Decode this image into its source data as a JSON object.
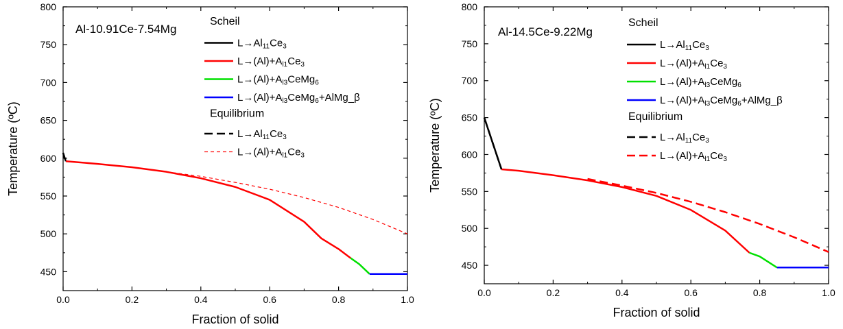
{
  "chart_data": [
    {
      "type": "line",
      "alloy": "Al-10.91Ce-7.54Mg",
      "xlabel": "Fraction of solid",
      "ylabel": "Temperature (ºC)",
      "xlim": [
        0,
        1.0
      ],
      "ylim": [
        425,
        800
      ],
      "xticks": [
        "0.0",
        "0.2",
        "0.4",
        "0.6",
        "0.8",
        "1.0"
      ],
      "yticks": [
        "450",
        "500",
        "550",
        "600",
        "650",
        "700",
        "750",
        "800"
      ],
      "scheil_heading": "Scheil",
      "equilibrium_heading": "Equilibrium",
      "series": [
        {
          "name": "L→Al11Ce3",
          "legend_parts": [
            [
              "L→Al",
              ""
            ],
            [
              "11",
              "sub"
            ],
            [
              "Ce",
              ""
            ],
            [
              "3",
              "sub"
            ]
          ],
          "group": "scheil",
          "color": "#000000",
          "dash": "solid",
          "width": 2.5,
          "x": [
            0.0,
            0.005,
            0.008
          ],
          "y": [
            607,
            600,
            596
          ]
        },
        {
          "name": "L→(Al)+Al1Ce3",
          "legend_parts": [
            [
              "L→(Al)+A",
              ""
            ],
            [
              "l1",
              "sub"
            ],
            [
              "Ce",
              ""
            ],
            [
              "3",
              "sub"
            ]
          ],
          "group": "scheil",
          "color": "#ff0000",
          "dash": "solid",
          "width": 2.5,
          "x": [
            0.008,
            0.1,
            0.2,
            0.3,
            0.4,
            0.5,
            0.6,
            0.7,
            0.75,
            0.8,
            0.835
          ],
          "y": [
            596,
            592.5,
            588,
            582,
            573.5,
            562,
            545,
            516,
            494,
            480,
            468
          ]
        },
        {
          "name": "L→(Al)+Al3CeMg6",
          "legend_parts": [
            [
              "L→(Al)+A",
              ""
            ],
            [
              "l3",
              "sub"
            ],
            [
              "CeMg",
              ""
            ],
            [
              "6",
              "sub"
            ]
          ],
          "group": "scheil",
          "color": "#00e000",
          "dash": "solid",
          "width": 2.5,
          "x": [
            0.835,
            0.86,
            0.89
          ],
          "y": [
            468,
            460,
            447
          ]
        },
        {
          "name": "L→(Al)+Al3CeMg6+AlMg_β",
          "legend_parts": [
            [
              "L→(Al)+A",
              ""
            ],
            [
              "l3",
              "sub"
            ],
            [
              "CeMg",
              ""
            ],
            [
              "6",
              "sub"
            ],
            [
              "+AlMg_β",
              ""
            ]
          ],
          "group": "scheil",
          "color": "#0000ff",
          "dash": "solid",
          "width": 2.5,
          "x": [
            0.89,
            1.0
          ],
          "y": [
            447,
            447
          ]
        },
        {
          "name": "L→Al11Ce3 (Equilibrium)",
          "legend_parts": [
            [
              "L→Al",
              ""
            ],
            [
              "11",
              "sub"
            ],
            [
              "Ce",
              ""
            ],
            [
              "3",
              "sub"
            ]
          ],
          "group": "equilibrium",
          "color": "#000000",
          "dash": "dashed",
          "width": 2.5,
          "x": [
            0.0,
            0.005
          ],
          "y": [
            607,
            599
          ]
        },
        {
          "name": "L→(Al)+Al1Ce3 (Equilibrium)",
          "legend_parts": [
            [
              "L→(Al)+A",
              ""
            ],
            [
              "l1",
              "sub"
            ],
            [
              "Ce",
              ""
            ],
            [
              "3",
              "sub"
            ]
          ],
          "group": "equilibrium",
          "color": "#ff0000",
          "dash": "thin-dashed",
          "width": 1.2,
          "x": [
            0.3,
            0.4,
            0.5,
            0.6,
            0.7,
            0.8,
            0.9,
            1.0
          ],
          "y": [
            582,
            576,
            568,
            559,
            548,
            535,
            519,
            500
          ]
        }
      ]
    },
    {
      "type": "line",
      "alloy": "Al-14.5Ce-9.22Mg",
      "xlabel": "Fraction of solid",
      "ylabel": "Temperature (ºC)",
      "xlim": [
        0,
        1.0
      ],
      "ylim": [
        425,
        800
      ],
      "xticks": [
        "0.0",
        "0.2",
        "0.4",
        "0.6",
        "0.8",
        "1.0"
      ],
      "yticks": [
        "450",
        "500",
        "550",
        "600",
        "650",
        "700",
        "750",
        "800"
      ],
      "scheil_heading": "Scheil",
      "equilibrium_heading": "Equilibrium",
      "series": [
        {
          "name": "L→Al11Ce3",
          "legend_parts": [
            [
              "L→Al",
              ""
            ],
            [
              "11",
              "sub"
            ],
            [
              "Ce",
              ""
            ],
            [
              "3",
              "sub"
            ]
          ],
          "group": "scheil",
          "color": "#000000",
          "dash": "solid",
          "width": 2.5,
          "x": [
            0.0,
            0.05
          ],
          "y": [
            650,
            580
          ]
        },
        {
          "name": "L→(Al)+Al1Ce3",
          "legend_parts": [
            [
              "L→(Al)+A",
              ""
            ],
            [
              "l1",
              "sub"
            ],
            [
              "Ce",
              ""
            ],
            [
              "3",
              "sub"
            ]
          ],
          "group": "scheil",
          "color": "#ff0000",
          "dash": "solid",
          "width": 2.5,
          "x": [
            0.05,
            0.1,
            0.2,
            0.3,
            0.4,
            0.5,
            0.6,
            0.7,
            0.77
          ],
          "y": [
            580,
            578,
            572,
            565,
            556,
            544,
            525,
            497,
            467
          ]
        },
        {
          "name": "L→(Al)+Al3CeMg6",
          "legend_parts": [
            [
              "L→(Al)+A",
              ""
            ],
            [
              "l3",
              "sub"
            ],
            [
              "CeMg",
              ""
            ],
            [
              "6",
              "sub"
            ]
          ],
          "group": "scheil",
          "color": "#00e000",
          "dash": "solid",
          "width": 2.5,
          "x": [
            0.77,
            0.8,
            0.85
          ],
          "y": [
            467,
            462,
            447
          ]
        },
        {
          "name": "L→(Al)+Al3CeMg6+AlMg_β",
          "legend_parts": [
            [
              "L→(Al)+A",
              ""
            ],
            [
              "l3",
              "sub"
            ],
            [
              "CeMg",
              ""
            ],
            [
              "6",
              "sub"
            ],
            [
              "+AlMg_β",
              ""
            ]
          ],
          "group": "scheil",
          "color": "#0000ff",
          "dash": "solid",
          "width": 2.5,
          "x": [
            0.85,
            1.0
          ],
          "y": [
            447,
            447
          ]
        },
        {
          "name": "L→Al11Ce3 (Equilibrium)",
          "legend_parts": [
            [
              "L→Al",
              ""
            ],
            [
              "11",
              "sub"
            ],
            [
              "Ce",
              ""
            ],
            [
              "3",
              "sub"
            ]
          ],
          "group": "equilibrium",
          "color": "#000000",
          "dash": "dashed",
          "width": 2.5,
          "x": [
            0.0,
            0.05
          ],
          "y": [
            650,
            580
          ]
        },
        {
          "name": "L→(Al)+Al1Ce3 (Equilibrium)",
          "legend_parts": [
            [
              "L→(Al)+A",
              ""
            ],
            [
              "l1",
              "sub"
            ],
            [
              "Ce",
              ""
            ],
            [
              "3",
              "sub"
            ]
          ],
          "group": "equilibrium",
          "color": "#ff0000",
          "dash": "dashed",
          "width": 2.5,
          "x": [
            0.3,
            0.4,
            0.5,
            0.6,
            0.7,
            0.8,
            0.9,
            1.0
          ],
          "y": [
            567,
            558,
            548,
            536,
            522,
            506,
            488,
            468
          ]
        }
      ]
    }
  ]
}
